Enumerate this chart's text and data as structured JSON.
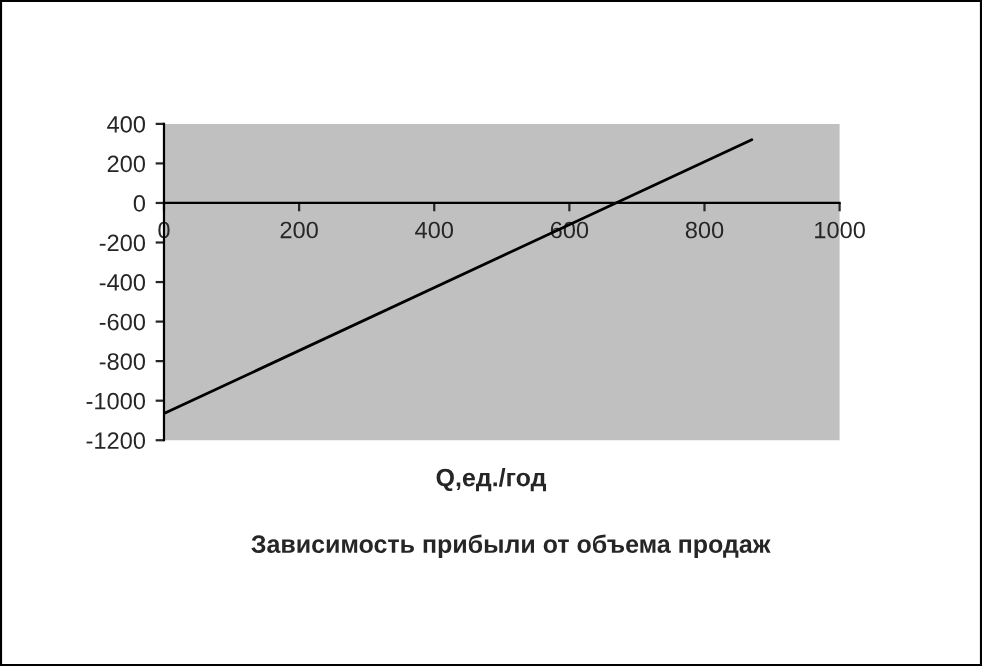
{
  "chart_data": {
    "type": "line",
    "title": "Зависимость прибыли от объема продаж",
    "xlabel": "Q,ед./год",
    "x": [
      0,
      870
    ],
    "series": [
      {
        "color": "#000000",
        "values": [
          -1065,
          320
        ]
      }
    ],
    "xlim": [
      0,
      1000
    ],
    "xticks": [
      0,
      200,
      400,
      600,
      800,
      1000
    ],
    "ylim": [
      -1200,
      400
    ],
    "yticks": [
      -1200,
      -1000,
      -800,
      -600,
      -400,
      -200,
      0,
      200,
      400
    ],
    "grid": false,
    "legend": false,
    "marker": "none",
    "line_style": "solid"
  }
}
